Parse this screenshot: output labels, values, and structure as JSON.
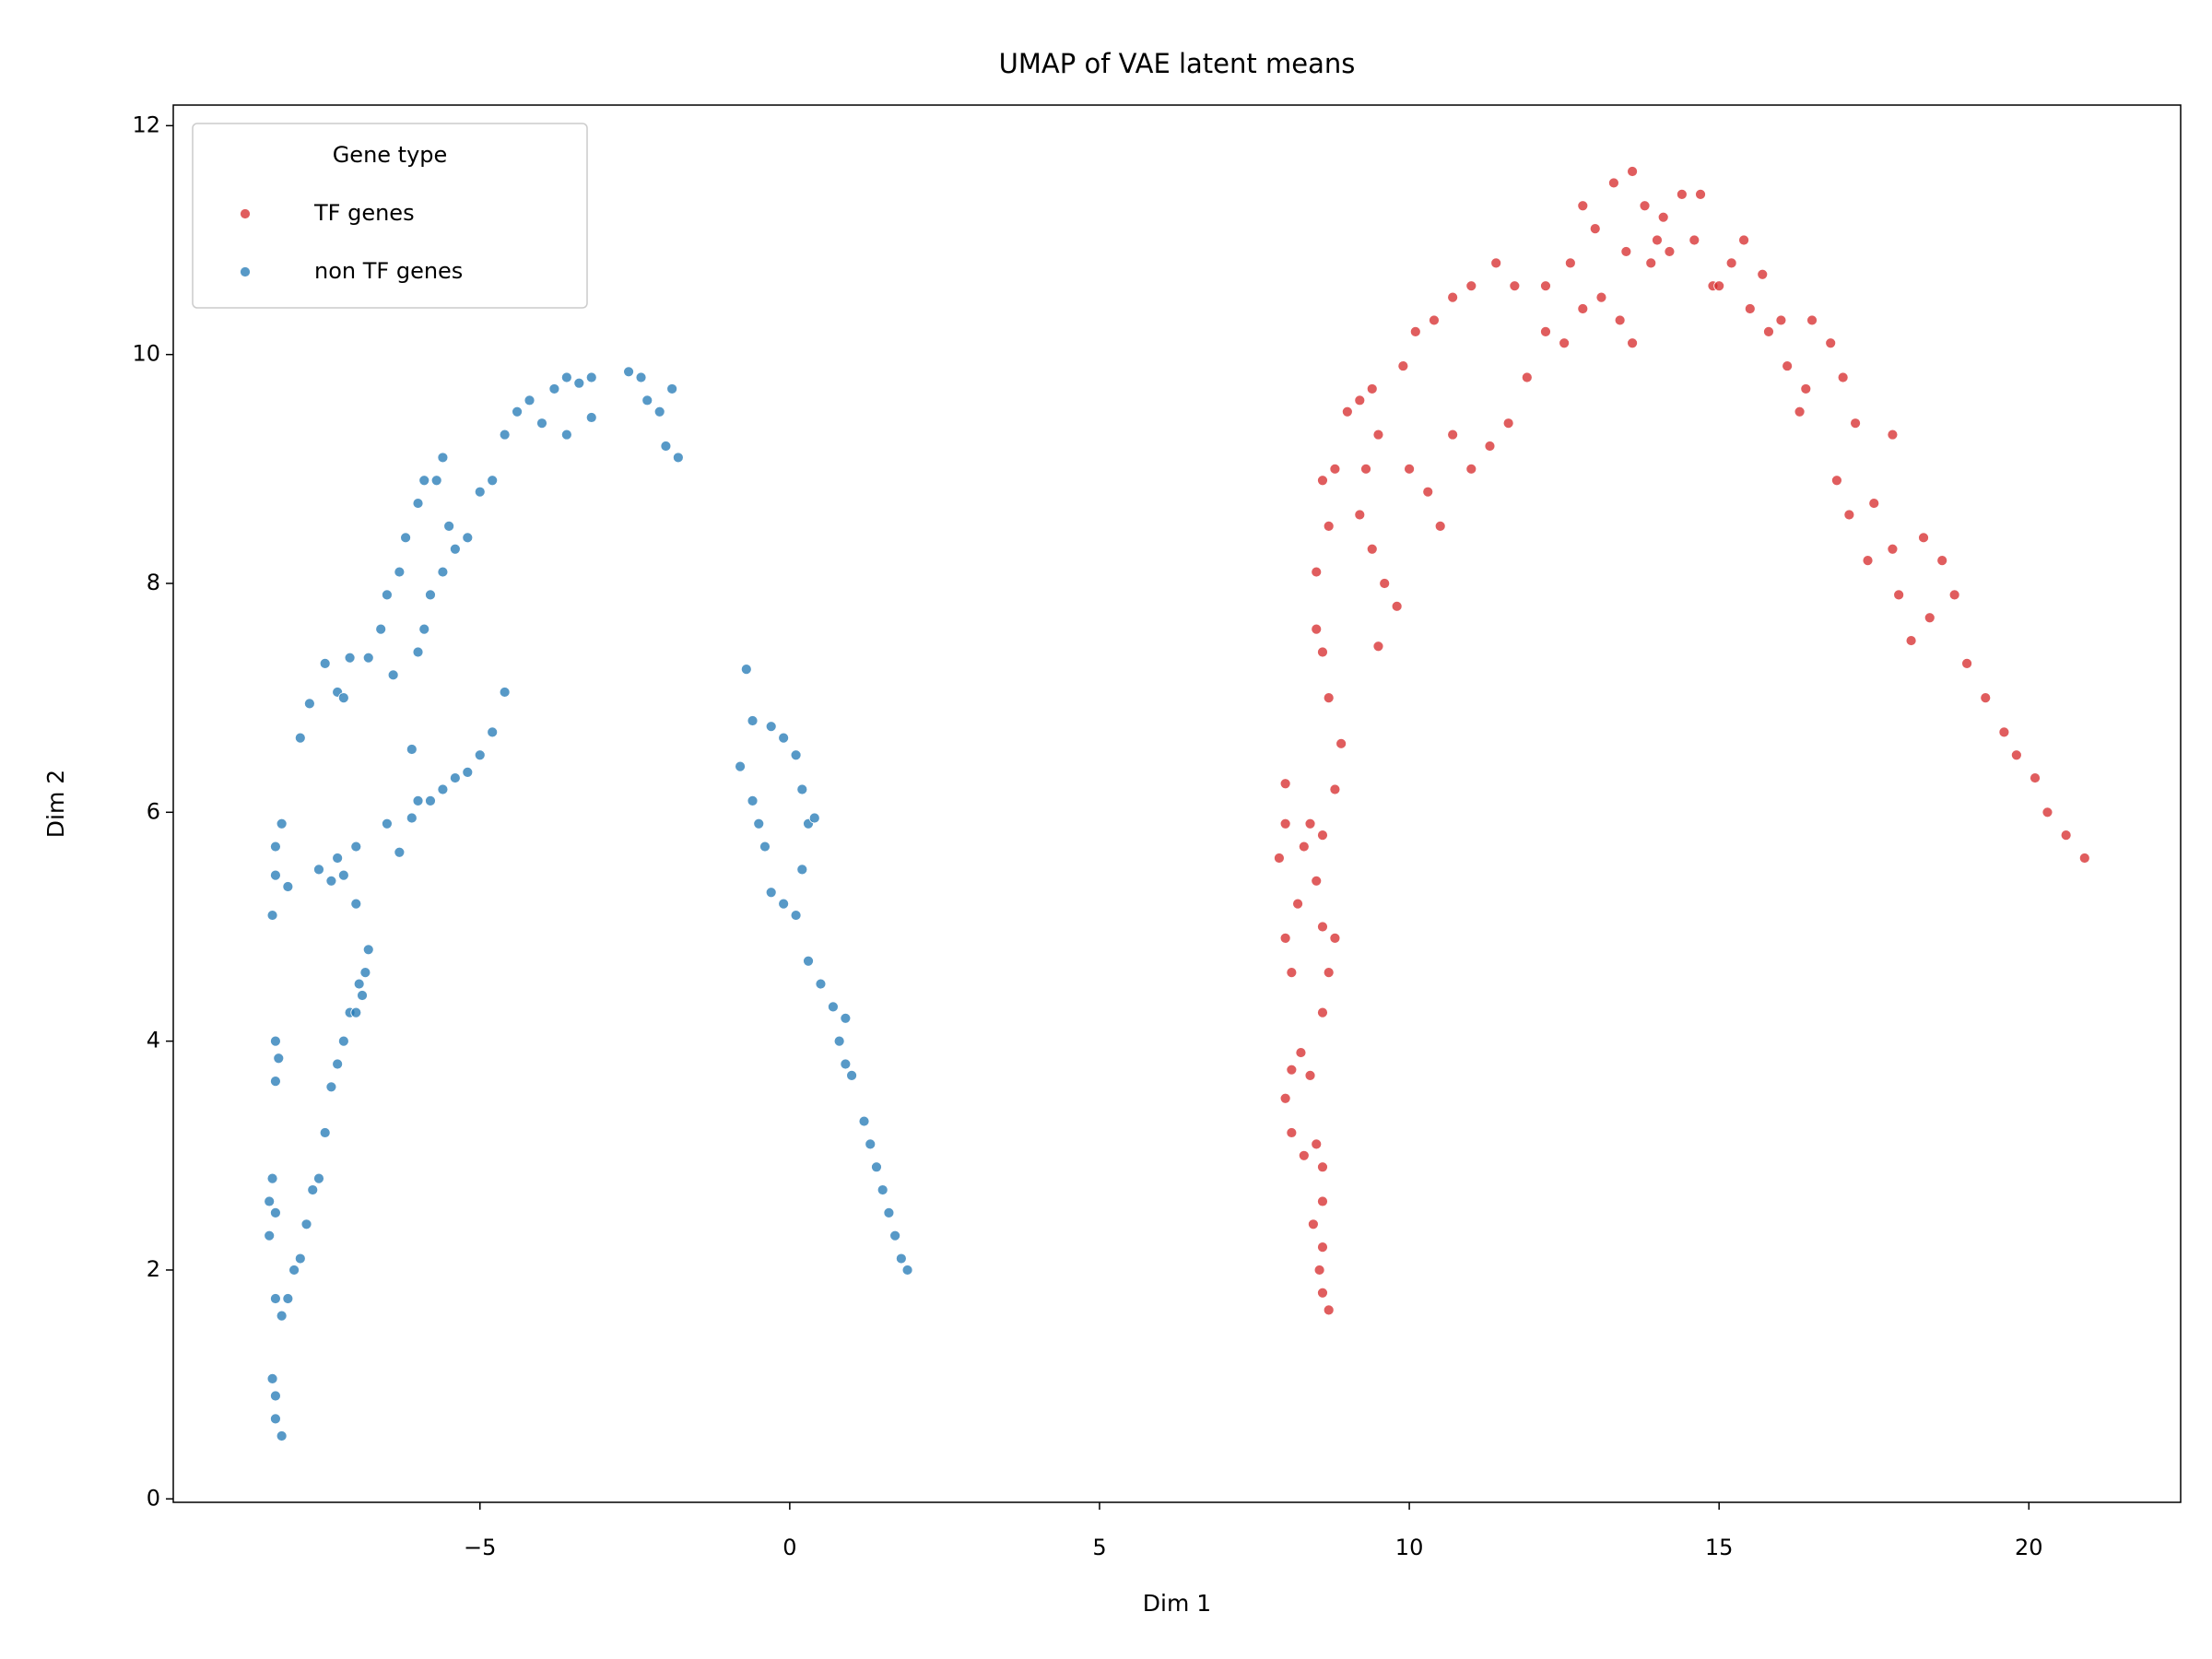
{
  "chart_data": {
    "type": "scatter",
    "title": "UMAP of VAE latent means",
    "x_label": "Dim 1",
    "y_label": "Dim 2",
    "legend_title": "Gene type",
    "legend_position": "upper left",
    "grid": false,
    "xlim": [
      -9.95,
      22.45
    ],
    "ylim": [
      -0.03,
      12.18
    ],
    "xticks": [
      {
        "value": -5,
        "label": "−5"
      },
      0,
      5,
      10,
      15,
      20
    ],
    "yticks": [
      0,
      2,
      4,
      6,
      8,
      10,
      12
    ],
    "series": [
      {
        "name": "TF genes",
        "color": "#d62728",
        "x": [
          8.7,
          8.6,
          8.55,
          8.6,
          8.45,
          8.6,
          8.6,
          8.5,
          8.3,
          8.1,
          8.0,
          8.1,
          8.25,
          8.4,
          8.6,
          8.1,
          8.0,
          8.2,
          7.9,
          8.0,
          8.3,
          8.5,
          8.6,
          8.8,
          8.7,
          8.4,
          8.0,
          8.6,
          8.8,
          8.9,
          8.7,
          8.6,
          8.5,
          8.5,
          8.7,
          8.6,
          8.8,
          9.0,
          9.2,
          9.4,
          9.5,
          9.3,
          9.2,
          9.4,
          9.6,
          9.8,
          9.5,
          9.9,
          10.1,
          10.4,
          10.7,
          11.0,
          11.4,
          11.7,
          12.2,
          12.6,
          13.0,
          13.3,
          13.6,
          13.8,
          14.1,
          14.4,
          14.7,
          14.6,
          14.9,
          15.2,
          15.4,
          15.5,
          15.8,
          16.1,
          16.4,
          16.5,
          16.8,
          17.0,
          17.2,
          17.5,
          17.4,
          17.8,
          17.9,
          18.4,
          18.3,
          18.6,
          18.8,
          19.0,
          19.3,
          19.6,
          19.8,
          20.1,
          20.3,
          20.6,
          20.9,
          10.0,
          10.3,
          10.5,
          10.7,
          11.0,
          11.3,
          11.6,
          11.9,
          12.2,
          12.5,
          12.8,
          13.1,
          13.4,
          13.6,
          13.9,
          14.2,
          15.0,
          15.7,
          16.0,
          16.3,
          16.9,
          17.1,
          17.8,
          18.1,
          12.8,
          13.5,
          14.0
        ],
        "values": [
          1.65,
          1.8,
          2.0,
          2.2,
          2.4,
          2.6,
          2.9,
          3.1,
          3.0,
          3.2,
          3.5,
          3.75,
          3.9,
          3.7,
          4.25,
          4.6,
          4.9,
          5.2,
          5.6,
          5.9,
          5.7,
          5.4,
          5.0,
          4.9,
          4.6,
          5.9,
          6.25,
          5.8,
          6.2,
          6.6,
          7.0,
          7.4,
          7.6,
          8.1,
          8.5,
          8.9,
          9.0,
          9.5,
          9.6,
          9.7,
          9.3,
          9.0,
          8.6,
          8.3,
          8.0,
          7.8,
          7.45,
          9.9,
          10.2,
          10.3,
          10.5,
          10.6,
          10.8,
          10.6,
          10.6,
          10.8,
          11.1,
          11.5,
          11.6,
          11.3,
          11.2,
          11.4,
          11.4,
          11.0,
          10.6,
          10.8,
          11.0,
          10.4,
          10.2,
          9.9,
          9.7,
          10.3,
          10.1,
          9.8,
          9.4,
          8.7,
          8.2,
          9.3,
          7.9,
          7.7,
          8.4,
          8.2,
          7.9,
          7.3,
          7.0,
          6.7,
          6.5,
          6.3,
          6.0,
          5.8,
          5.6,
          9.0,
          8.8,
          8.5,
          9.3,
          9.0,
          9.2,
          9.4,
          9.8,
          10.2,
          10.1,
          10.4,
          10.5,
          10.3,
          10.1,
          10.8,
          10.9,
          10.6,
          10.7,
          10.3,
          9.5,
          8.9,
          8.6,
          8.3,
          7.5,
          11.3,
          10.9,
          11.0
        ]
      },
      {
        "name": "non TF genes",
        "color": "#1f77b4",
        "x": [
          -8.2,
          -8.3,
          -8.3,
          -8.35,
          -8.2,
          -8.3,
          -8.1,
          -8.4,
          -8.4,
          -8.35,
          -8.3,
          -8.3,
          -8.25,
          -8.3,
          -8.35,
          -8.3,
          -8.3,
          -8.2,
          -8.1,
          -7.9,
          -7.75,
          -7.5,
          -7.3,
          -7.1,
          -7.2,
          -8.0,
          -7.9,
          -7.8,
          -7.7,
          -7.6,
          -7.5,
          -7.4,
          -7.3,
          -7.2,
          -7.1,
          -7.0,
          -6.95,
          -6.85,
          -6.8,
          -6.9,
          -7.0,
          -7.2,
          -7.3,
          -7.4,
          -7.6,
          -7.0,
          -6.5,
          -6.3,
          -6.1,
          -6.0,
          -5.8,
          -5.6,
          -5.4,
          -5.2,
          -5.0,
          -4.8,
          -4.6,
          -6.1,
          -6.6,
          -6.5,
          -6.3,
          -6.2,
          -6.0,
          -5.9,
          -5.7,
          -5.5,
          -5.4,
          -5.2,
          -5.6,
          -5.6,
          -5.0,
          -4.8,
          -4.6,
          -4.4,
          -4.2,
          -4.0,
          -3.8,
          -3.6,
          -3.4,
          -3.2,
          -3.6,
          -3.2,
          -2.6,
          -2.4,
          -2.3,
          -2.1,
          -1.9,
          -1.8,
          -2.0,
          -6.0,
          -6.4,
          -5.9,
          -5.8,
          -6.8,
          -0.7,
          -0.6,
          -0.8,
          -0.6,
          -0.5,
          -0.4,
          -0.3,
          -0.1,
          0.1,
          0.2,
          0.3,
          0.4,
          0.2,
          0.1,
          -0.1,
          -0.3,
          0.3,
          0.5,
          0.7,
          0.8,
          0.9,
          1.0,
          0.9,
          1.2,
          1.3,
          1.4,
          1.5,
          1.6,
          1.7,
          1.8,
          1.9
        ],
        "values": [
          0.55,
          0.7,
          0.9,
          1.05,
          1.6,
          1.75,
          1.75,
          2.3,
          2.6,
          2.8,
          2.5,
          3.65,
          3.85,
          4.0,
          5.1,
          5.45,
          5.7,
          5.9,
          5.35,
          6.65,
          6.95,
          7.3,
          7.05,
          7.35,
          7.0,
          2.0,
          2.1,
          2.4,
          2.7,
          2.8,
          3.2,
          3.6,
          3.8,
          4.0,
          4.25,
          4.25,
          4.5,
          4.6,
          4.8,
          4.4,
          5.2,
          5.45,
          5.6,
          5.4,
          5.5,
          5.7,
          5.9,
          5.65,
          5.95,
          6.1,
          6.1,
          6.2,
          6.3,
          6.35,
          6.5,
          6.7,
          7.05,
          6.55,
          7.6,
          7.9,
          8.1,
          8.4,
          8.7,
          8.9,
          8.9,
          8.5,
          8.3,
          8.4,
          8.1,
          9.1,
          8.8,
          8.9,
          9.3,
          9.5,
          9.6,
          9.4,
          9.7,
          9.8,
          9.75,
          9.8,
          9.3,
          9.45,
          9.85,
          9.8,
          9.6,
          9.5,
          9.7,
          9.1,
          9.2,
          7.4,
          7.2,
          7.6,
          7.9,
          7.35,
          7.25,
          6.8,
          6.4,
          6.1,
          5.9,
          5.7,
          5.3,
          5.2,
          5.1,
          5.5,
          5.9,
          5.95,
          6.2,
          6.5,
          6.65,
          6.75,
          4.7,
          4.5,
          4.3,
          4.0,
          3.8,
          3.7,
          4.2,
          3.3,
          3.1,
          2.9,
          2.7,
          2.5,
          2.3,
          2.1,
          2.0
        ]
      }
    ]
  }
}
